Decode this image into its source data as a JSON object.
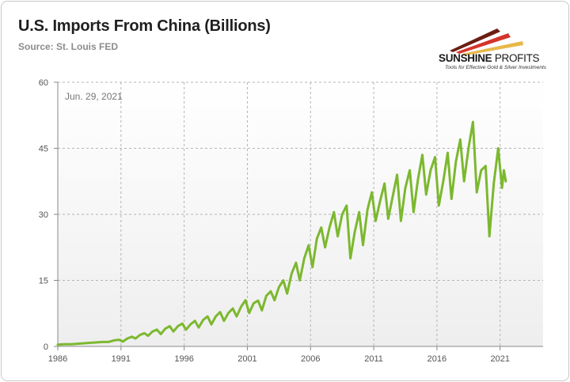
{
  "header": {
    "title": "U.S. Imports From China (Billions)",
    "source": "Source: St. Louis FED"
  },
  "logo": {
    "brand_a": "SUNSHINE",
    "brand_b": " PROFITS",
    "tagline": "Tools for Effective Gold & Silver Investments",
    "colors": {
      "dark": "#6b1e12",
      "red": "#d4342a",
      "gold": "#e8b84a"
    }
  },
  "colors": {
    "line": "#7cb82f",
    "grid": "#b4b4b4",
    "plot_bg_top": "#ffffff",
    "plot_bg_bottom": "#eeeeee"
  },
  "chart_data": {
    "type": "line",
    "title": "U.S. Imports From China (Billions)",
    "annotation": "Jun. 29, 2021",
    "xlabel": "",
    "ylabel": "",
    "xlim": [
      1986,
      2024.4
    ],
    "ylim": [
      0,
      60
    ],
    "x_ticks": [
      1986,
      1991,
      1996,
      2001,
      2006,
      2011,
      2016,
      2021
    ],
    "y_ticks": [
      0,
      15,
      30,
      45,
      60
    ],
    "grid": true,
    "series": [
      {
        "name": "",
        "x": [
          1986.0,
          1986.5,
          1987.0,
          1987.5,
          1988.0,
          1988.5,
          1989.0,
          1989.5,
          1990.0,
          1990.5,
          1990.85,
          1991.15,
          1991.5,
          1991.85,
          1992.15,
          1992.5,
          1992.85,
          1993.15,
          1993.5,
          1993.85,
          1994.15,
          1994.5,
          1994.85,
          1995.15,
          1995.5,
          1995.85,
          1996.15,
          1996.5,
          1996.85,
          1997.15,
          1997.5,
          1997.85,
          1998.15,
          1998.5,
          1998.85,
          1999.15,
          1999.5,
          1999.85,
          2000.15,
          2000.5,
          2000.85,
          2001.15,
          2001.5,
          2001.85,
          2002.15,
          2002.5,
          2002.85,
          2003.15,
          2003.5,
          2003.85,
          2004.15,
          2004.5,
          2004.85,
          2005.15,
          2005.5,
          2005.85,
          2006.15,
          2006.5,
          2006.85,
          2007.15,
          2007.5,
          2007.85,
          2008.15,
          2008.5,
          2008.85,
          2009.15,
          2009.5,
          2009.85,
          2010.15,
          2010.5,
          2010.85,
          2011.15,
          2011.5,
          2011.85,
          2012.15,
          2012.5,
          2012.85,
          2013.15,
          2013.5,
          2013.85,
          2014.15,
          2014.5,
          2014.85,
          2015.15,
          2015.5,
          2015.85,
          2016.15,
          2016.5,
          2016.85,
          2017.15,
          2017.5,
          2017.85,
          2018.15,
          2018.5,
          2018.85,
          2019.15,
          2019.5,
          2019.85,
          2020.15,
          2020.5,
          2020.85,
          2021.15,
          2021.3,
          2021.45
        ],
        "values": [
          0.4,
          0.5,
          0.5,
          0.6,
          0.7,
          0.8,
          0.9,
          1.0,
          1.0,
          1.4,
          1.5,
          1.1,
          1.8,
          2.2,
          1.8,
          2.6,
          3.0,
          2.4,
          3.4,
          3.8,
          2.8,
          4.0,
          4.6,
          3.4,
          4.6,
          5.2,
          3.8,
          5.0,
          5.8,
          4.3,
          6.0,
          6.8,
          5.0,
          6.8,
          7.8,
          5.8,
          7.6,
          8.6,
          6.8,
          9.0,
          10.5,
          7.6,
          9.8,
          10.4,
          8.2,
          11.5,
          12.5,
          10.5,
          13.5,
          15.0,
          12.0,
          16.5,
          19.0,
          15.0,
          20.0,
          23.0,
          18.0,
          24.5,
          27.0,
          22.5,
          27.0,
          30.5,
          25.0,
          30.0,
          32.0,
          20.0,
          26.0,
          30.5,
          23.0,
          31.0,
          35.0,
          28.5,
          33.0,
          37.0,
          29.0,
          34.0,
          39.0,
          28.5,
          36.0,
          40.0,
          30.5,
          38.0,
          43.5,
          34.5,
          40.0,
          43.0,
          32.0,
          37.5,
          44.0,
          33.5,
          42.0,
          47.0,
          37.5,
          45.0,
          51.0,
          35.0,
          40.0,
          41.0,
          25.0,
          37.0,
          45.0,
          36.0,
          40.0,
          37.5
        ]
      }
    ]
  }
}
